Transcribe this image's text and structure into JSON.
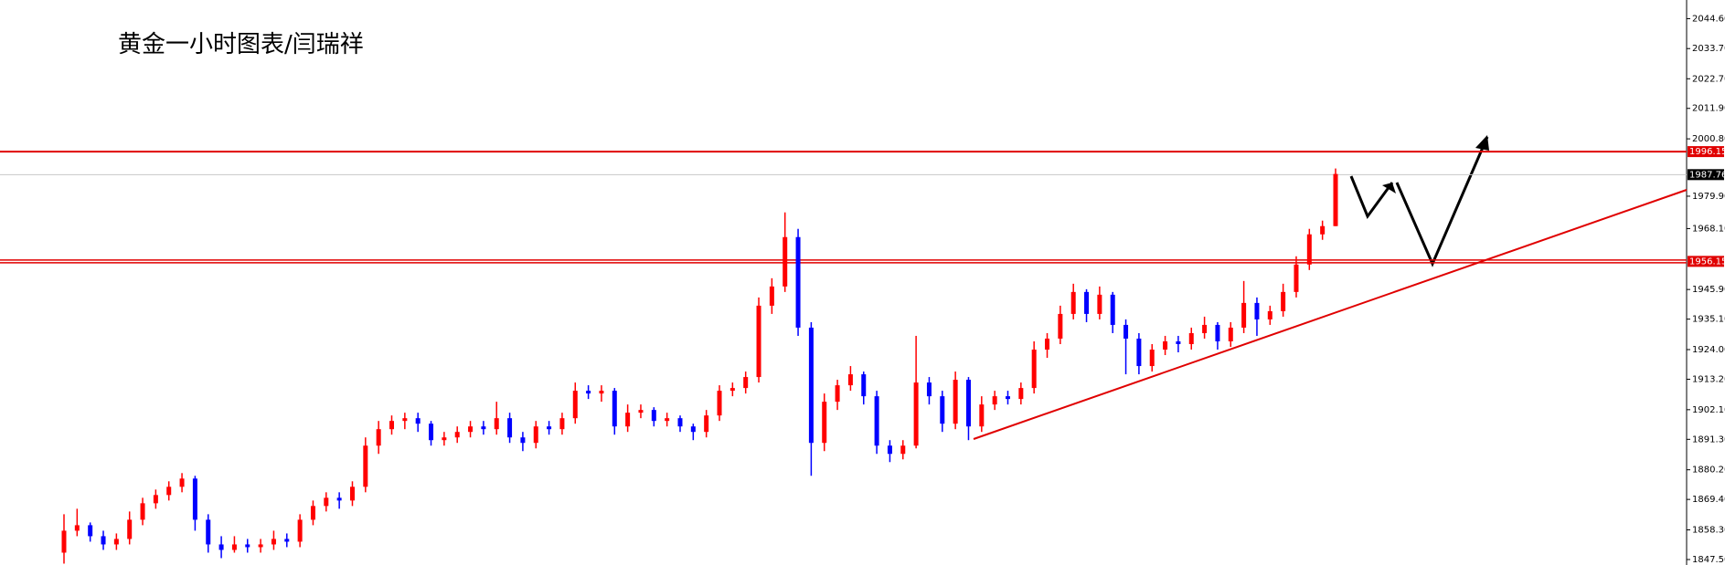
{
  "chart_data": {
    "type": "candlestick",
    "title": "黄金一小时图表/闫瑞祥",
    "up_color": "#ff0000",
    "down_color": "#0000ff",
    "ylim": [
      1845.5,
      2051.4
    ],
    "yticks": [
      {
        "value": 2044.6,
        "label": "2044.60"
      },
      {
        "value": 2033.7,
        "label": "2033.70"
      },
      {
        "value": 2022.7,
        "label": "2022.70"
      },
      {
        "value": 2011.9,
        "label": "2011.90"
      },
      {
        "value": 2000.8,
        "label": "2000.80"
      },
      {
        "value": 1979.9,
        "label": "1979.90"
      },
      {
        "value": 1968.1,
        "label": "1968.10"
      },
      {
        "value": 1945.9,
        "label": "1945.90"
      },
      {
        "value": 1935.1,
        "label": "1935.10"
      },
      {
        "value": 1924,
        "label": "1924.00"
      },
      {
        "value": 1913.2,
        "label": "1913.20"
      },
      {
        "value": 1902.1,
        "label": "1902.10"
      },
      {
        "value": 1891.3,
        "label": "1891.30"
      },
      {
        "value": 1880.2,
        "label": "1880.20"
      },
      {
        "value": 1869.4,
        "label": "1869.40"
      },
      {
        "value": 1858.3,
        "label": "1858.30"
      },
      {
        "value": 1847.5,
        "label": "1847.50"
      }
    ],
    "levels": [
      {
        "value": 1996.15,
        "color": "#e00000"
      },
      {
        "value": 1987.76,
        "color": "#000000"
      },
      {
        "value": 1956.15,
        "color": "#e00000"
      }
    ],
    "candles": [
      [
        1850,
        1864,
        1846,
        1858
      ],
      [
        1858,
        1866,
        1856,
        1860
      ],
      [
        1860,
        1861,
        1854,
        1856
      ],
      [
        1856,
        1858,
        1851,
        1853
      ],
      [
        1853,
        1857,
        1851,
        1855
      ],
      [
        1855,
        1865,
        1853,
        1862
      ],
      [
        1862,
        1870,
        1860,
        1868
      ],
      [
        1868,
        1873,
        1866,
        1871
      ],
      [
        1871,
        1876,
        1869,
        1874
      ],
      [
        1874,
        1879,
        1872,
        1877
      ],
      [
        1877,
        1878,
        1858,
        1862
      ],
      [
        1862,
        1864,
        1850,
        1853
      ],
      [
        1853,
        1856,
        1848,
        1851
      ],
      [
        1851,
        1856,
        1850,
        1853
      ],
      [
        1853,
        1855,
        1850,
        1852
      ],
      [
        1852,
        1855,
        1850,
        1853
      ],
      [
        1853,
        1858,
        1851,
        1855
      ],
      [
        1855,
        1857,
        1852,
        1854
      ],
      [
        1854,
        1864,
        1852,
        1862
      ],
      [
        1862,
        1869,
        1860,
        1867
      ],
      [
        1867,
        1872,
        1865,
        1870
      ],
      [
        1870,
        1872,
        1866,
        1869
      ],
      [
        1869,
        1876,
        1867,
        1874
      ],
      [
        1874,
        1892,
        1872,
        1889
      ],
      [
        1889,
        1898,
        1886,
        1895
      ],
      [
        1895,
        1900,
        1893,
        1898
      ],
      [
        1898,
        1901,
        1895,
        1899
      ],
      [
        1899,
        1901,
        1894,
        1897
      ],
      [
        1897,
        1898,
        1889,
        1891
      ],
      [
        1891,
        1894,
        1889,
        1892
      ],
      [
        1892,
        1896,
        1890,
        1894
      ],
      [
        1894,
        1898,
        1892,
        1896
      ],
      [
        1896,
        1898,
        1893,
        1895
      ],
      [
        1895,
        1905,
        1893,
        1899
      ],
      [
        1899,
        1901,
        1890,
        1892
      ],
      [
        1892,
        1894,
        1887,
        1890
      ],
      [
        1890,
        1898,
        1888,
        1896
      ],
      [
        1896,
        1898,
        1893,
        1895
      ],
      [
        1895,
        1901,
        1893,
        1899
      ],
      [
        1899,
        1912,
        1897,
        1909
      ],
      [
        1909,
        1911,
        1906,
        1908
      ],
      [
        1908,
        1911,
        1905,
        1909
      ],
      [
        1909,
        1910,
        1893,
        1896
      ],
      [
        1896,
        1904,
        1894,
        1901
      ],
      [
        1901,
        1904,
        1899,
        1902
      ],
      [
        1902,
        1903,
        1896,
        1898
      ],
      [
        1898,
        1901,
        1896,
        1899
      ],
      [
        1899,
        1900,
        1894,
        1896
      ],
      [
        1896,
        1897,
        1891,
        1894
      ],
      [
        1894,
        1902,
        1892,
        1900
      ],
      [
        1900,
        1911,
        1898,
        1909
      ],
      [
        1909,
        1912,
        1907,
        1910
      ],
      [
        1910,
        1916,
        1908,
        1914
      ],
      [
        1914,
        1943,
        1912,
        1940
      ],
      [
        1940,
        1950,
        1937,
        1947
      ],
      [
        1947,
        1974,
        1945,
        1965
      ],
      [
        1965,
        1968,
        1929,
        1932
      ],
      [
        1932,
        1934,
        1878,
        1890
      ],
      [
        1890,
        1908,
        1887,
        1905
      ],
      [
        1905,
        1913,
        1902,
        1911
      ],
      [
        1911,
        1918,
        1909,
        1915
      ],
      [
        1915,
        1916,
        1904,
        1907
      ],
      [
        1907,
        1909,
        1886,
        1889
      ],
      [
        1889,
        1891,
        1883,
        1886
      ],
      [
        1886,
        1891,
        1884,
        1889
      ],
      [
        1889,
        1929,
        1888,
        1912
      ],
      [
        1912,
        1914,
        1904,
        1907
      ],
      [
        1907,
        1909,
        1894,
        1897
      ],
      [
        1897,
        1916,
        1895,
        1913
      ],
      [
        1913,
        1914,
        1891,
        1896
      ],
      [
        1896,
        1907,
        1894,
        1904
      ],
      [
        1904,
        1909,
        1902,
        1907
      ],
      [
        1907,
        1909,
        1904,
        1906
      ],
      [
        1906,
        1912,
        1904,
        1910
      ],
      [
        1910,
        1927,
        1908,
        1924
      ],
      [
        1924,
        1930,
        1921,
        1928
      ],
      [
        1928,
        1940,
        1926,
        1937
      ],
      [
        1937,
        1948,
        1935,
        1945
      ],
      [
        1945,
        1946,
        1934,
        1937
      ],
      [
        1937,
        1947,
        1935,
        1944
      ],
      [
        1944,
        1945,
        1930,
        1933
      ],
      [
        1933,
        1935,
        1915,
        1928
      ],
      [
        1928,
        1930,
        1915,
        1918
      ],
      [
        1918,
        1926,
        1916,
        1924
      ],
      [
        1924,
        1929,
        1922,
        1927
      ],
      [
        1927,
        1929,
        1923,
        1926
      ],
      [
        1926,
        1932,
        1924,
        1930
      ],
      [
        1930,
        1936,
        1928,
        1933
      ],
      [
        1933,
        1934,
        1924,
        1927
      ],
      [
        1927,
        1934,
        1925,
        1932
      ],
      [
        1932,
        1949,
        1930,
        1941
      ],
      [
        1941,
        1943,
        1929,
        1935
      ],
      [
        1935,
        1940,
        1933,
        1938
      ],
      [
        1938,
        1948,
        1936,
        1945
      ],
      [
        1945,
        1958,
        1943,
        1955
      ],
      [
        1955,
        1968,
        1953,
        1966
      ],
      [
        1966,
        1971,
        1964,
        1969
      ],
      [
        1969,
        1990,
        1969,
        1988
      ]
    ]
  }
}
